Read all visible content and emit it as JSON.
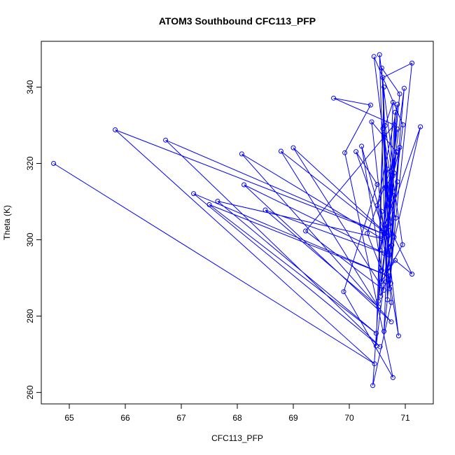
{
  "chart_data": {
    "type": "line",
    "title": "ATOM3 Southbound CFC113_PFP",
    "xlabel": "CFC113_PFP",
    "ylabel": "Theta (K)",
    "xlim": [
      64.5,
      71.5
    ],
    "ylim": [
      257,
      352
    ],
    "x_ticks": [
      65,
      66,
      67,
      68,
      69,
      70,
      71
    ],
    "y_ticks": [
      260,
      280,
      300,
      320,
      340
    ],
    "grid": false,
    "line_color": "#0000ff",
    "marker": "open-circle",
    "series": [
      {
        "x": [
          64.72,
          70.45,
          65.82,
          70.62,
          66.72,
          70.55,
          67.22,
          70.7,
          67.5,
          70.48,
          67.65,
          70.58,
          68.08,
          70.75,
          68.12,
          70.62,
          68.5,
          70.52,
          68.78,
          70.7,
          69.0,
          70.62,
          69.22,
          70.8,
          69.72,
          70.38,
          69.92,
          70.78,
          69.9,
          70.5,
          70.12,
          70.72,
          70.22,
          70.58,
          70.32,
          70.85,
          70.4,
          70.75,
          70.42,
          70.68,
          70.44,
          70.96,
          70.48,
          70.62,
          70.52,
          70.8,
          70.54,
          70.66,
          70.56,
          70.9,
          70.58,
          70.71,
          70.6,
          71.12,
          70.62,
          70.78,
          70.64,
          70.95,
          70.66,
          71.27,
          70.68,
          70.86,
          70.7,
          70.98,
          70.72,
          70.82,
          70.74,
          70.6,
          70.76,
          70.9,
          70.78,
          70.63,
          70.8,
          71.12,
          70.82,
          70.57,
          70.84,
          70.7,
          70.86,
          70.5,
          70.88,
          70.66,
          70.62,
          70.78,
          70.55,
          70.86,
          70.6,
          70.73,
          70.68,
          70.62,
          70.7,
          70.83,
          70.72,
          70.58
        ],
        "y": [
          320.0,
          267.5,
          328.8,
          301.5,
          326.1,
          272.0,
          312.1,
          290.5,
          309.2,
          275.5,
          310.1,
          300.3,
          322.5,
          278.5,
          314.4,
          296.5,
          307.8,
          282.4,
          323.2,
          301.1,
          324.1,
          286.8,
          302.3,
          330.1,
          337.1,
          335.3,
          322.8,
          263.9,
          286.4,
          314.5,
          323.1,
          298.2,
          324.5,
          292.0,
          301.7,
          322.9,
          330.9,
          283.6,
          261.8,
          318.5,
          348.0,
          330.1,
          272.2,
          340.0,
          283.9,
          317.5,
          348.5,
          289.0,
          285.2,
          338.2,
          345.0,
          296.0,
          342.5,
          346.3,
          276.0,
          336.0,
          329.9,
          298.7,
          291.0,
          329.6,
          304.5,
          315.2,
          292.8,
          339.7,
          310.4,
          333.4,
          288.6,
          329.1,
          298.6,
          324.2,
          316.8,
          313.6,
          300.7,
          291.0,
          294.6,
          289.0,
          323.1,
          303.4,
          335.5,
          309.0,
          274.8,
          302.0,
          327.0,
          312.6,
          297.3,
          329.0,
          302.5,
          317.9,
          284.3,
          327.5,
          311.0,
          305.7,
          287.2,
          307.4
        ]
      }
    ]
  }
}
